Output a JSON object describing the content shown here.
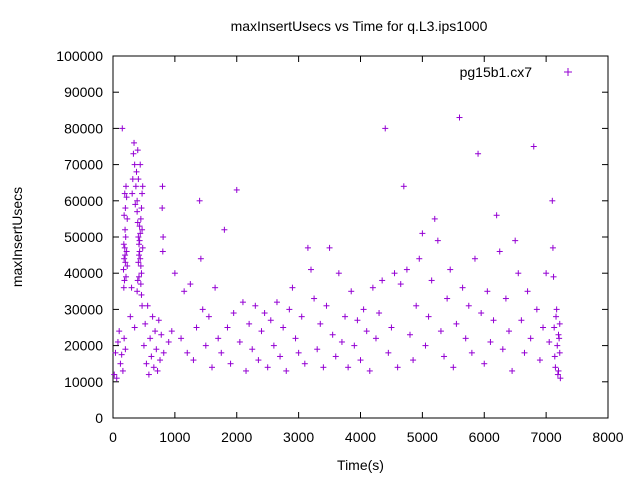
{
  "chart_data": {
    "type": "scatter",
    "title": "maxInsertUsecs vs Time for q.L3.ips1000",
    "xlabel": "Time(s)",
    "ylabel": "maxInsertUsecs",
    "xlim": [
      0,
      8000
    ],
    "ylim": [
      0,
      100000
    ],
    "xticks": [
      0,
      1000,
      2000,
      3000,
      4000,
      5000,
      6000,
      7000,
      8000
    ],
    "yticks": [
      0,
      10000,
      20000,
      30000,
      40000,
      50000,
      60000,
      70000,
      80000,
      90000,
      100000
    ],
    "grid": false,
    "legend": "top-right",
    "marker": "plus",
    "series": [
      {
        "name": "pg15b1.cx7",
        "color": "#9400d3",
        "points": [
          [
            20,
            12000
          ],
          [
            40,
            18000
          ],
          [
            60,
            11000
          ],
          [
            80,
            21000
          ],
          [
            100,
            24000
          ],
          [
            120,
            15000
          ],
          [
            140,
            17500
          ],
          [
            160,
            13000
          ],
          [
            180,
            22000
          ],
          [
            200,
            19000
          ],
          [
            170,
            41000
          ],
          [
            180,
            44000
          ],
          [
            190,
            47000
          ],
          [
            200,
            43000
          ],
          [
            210,
            39000
          ],
          [
            220,
            46000
          ],
          [
            230,
            42000
          ],
          [
            175,
            48000
          ],
          [
            185,
            38000
          ],
          [
            195,
            45000
          ],
          [
            180,
            56000
          ],
          [
            190,
            62000
          ],
          [
            200,
            58000
          ],
          [
            210,
            64000
          ],
          [
            220,
            61000
          ],
          [
            230,
            55000
          ],
          [
            175,
            36000
          ],
          [
            195,
            52000
          ],
          [
            205,
            50000
          ],
          [
            150,
            80000
          ],
          [
            280,
            28000
          ],
          [
            300,
            36000
          ],
          [
            310,
            62000
          ],
          [
            320,
            66000
          ],
          [
            330,
            73000
          ],
          [
            340,
            76000
          ],
          [
            350,
            70000
          ],
          [
            360,
            59000
          ],
          [
            370,
            64000
          ],
          [
            380,
            68000
          ],
          [
            390,
            57000
          ],
          [
            400,
            54000
          ],
          [
            410,
            50000
          ],
          [
            420,
            48000
          ],
          [
            430,
            46000
          ],
          [
            440,
            44000
          ],
          [
            450,
            42000
          ],
          [
            460,
            40000
          ],
          [
            470,
            52000
          ],
          [
            480,
            47000
          ],
          [
            390,
            35000
          ],
          [
            400,
            38000
          ],
          [
            410,
            43000
          ],
          [
            420,
            45000
          ],
          [
            430,
            49000
          ],
          [
            440,
            51000
          ],
          [
            450,
            55000
          ],
          [
            460,
            58000
          ],
          [
            470,
            62000
          ],
          [
            480,
            64000
          ],
          [
            400,
            74000
          ],
          [
            410,
            66000
          ],
          [
            440,
            70000
          ],
          [
            390,
            60000
          ],
          [
            430,
            53000
          ],
          [
            350,
            25000
          ],
          [
            420,
            39000
          ],
          [
            450,
            37000
          ],
          [
            460,
            34000
          ],
          [
            470,
            31000
          ],
          [
            500,
            20000
          ],
          [
            520,
            26000
          ],
          [
            540,
            15000
          ],
          [
            560,
            31000
          ],
          [
            580,
            12000
          ],
          [
            600,
            22000
          ],
          [
            620,
            17000
          ],
          [
            640,
            28000
          ],
          [
            660,
            14000
          ],
          [
            680,
            24000
          ],
          [
            700,
            19000
          ],
          [
            720,
            13000
          ],
          [
            740,
            27000
          ],
          [
            760,
            16000
          ],
          [
            780,
            23000
          ],
          [
            795,
            58000
          ],
          [
            800,
            64000
          ],
          [
            805,
            46000
          ],
          [
            810,
            50000
          ],
          [
            820,
            18000
          ],
          [
            900,
            21000
          ],
          [
            950,
            24000
          ],
          [
            1000,
            40000
          ],
          [
            1100,
            22000
          ],
          [
            1150,
            35000
          ],
          [
            1200,
            18000
          ],
          [
            1250,
            37000
          ],
          [
            1300,
            16000
          ],
          [
            1350,
            25000
          ],
          [
            1400,
            60000
          ],
          [
            1420,
            44000
          ],
          [
            1450,
            30000
          ],
          [
            1500,
            20000
          ],
          [
            1550,
            28000
          ],
          [
            1600,
            14000
          ],
          [
            1650,
            36000
          ],
          [
            1700,
            22000
          ],
          [
            1750,
            18000
          ],
          [
            1800,
            52000
          ],
          [
            1850,
            25000
          ],
          [
            1900,
            15000
          ],
          [
            1950,
            29000
          ],
          [
            2000,
            63000
          ],
          [
            2050,
            21000
          ],
          [
            2100,
            32000
          ],
          [
            2150,
            13000
          ],
          [
            2200,
            26000
          ],
          [
            2250,
            19000
          ],
          [
            2300,
            31000
          ],
          [
            2350,
            16000
          ],
          [
            2400,
            24000
          ],
          [
            2450,
            29000
          ],
          [
            2500,
            14000
          ],
          [
            2550,
            27000
          ],
          [
            2600,
            20000
          ],
          [
            2650,
            32000
          ],
          [
            2700,
            17000
          ],
          [
            2750,
            25000
          ],
          [
            2800,
            13000
          ],
          [
            2850,
            30000
          ],
          [
            2900,
            36000
          ],
          [
            2950,
            22000
          ],
          [
            3000,
            18000
          ],
          [
            3050,
            28000
          ],
          [
            3100,
            15000
          ],
          [
            3150,
            47000
          ],
          [
            3200,
            41000
          ],
          [
            3250,
            33000
          ],
          [
            3300,
            19000
          ],
          [
            3350,
            26000
          ],
          [
            3400,
            14000
          ],
          [
            3450,
            31000
          ],
          [
            3500,
            47000
          ],
          [
            3550,
            23000
          ],
          [
            3600,
            17000
          ],
          [
            3650,
            40000
          ],
          [
            3700,
            21000
          ],
          [
            3750,
            28000
          ],
          [
            3800,
            14000
          ],
          [
            3850,
            35000
          ],
          [
            3900,
            20000
          ],
          [
            3950,
            27000
          ],
          [
            4000,
            16000
          ],
          [
            4050,
            30000
          ],
          [
            4100,
            24000
          ],
          [
            4150,
            13000
          ],
          [
            4200,
            36000
          ],
          [
            4250,
            22000
          ],
          [
            4300,
            29000
          ],
          [
            4350,
            38000
          ],
          [
            4400,
            80000
          ],
          [
            4450,
            18000
          ],
          [
            4500,
            25000
          ],
          [
            4550,
            40000
          ],
          [
            4600,
            14000
          ],
          [
            4650,
            37000
          ],
          [
            4700,
            64000
          ],
          [
            4750,
            41000
          ],
          [
            4800,
            23000
          ],
          [
            4850,
            16000
          ],
          [
            4900,
            31000
          ],
          [
            4950,
            44000
          ],
          [
            5000,
            51000
          ],
          [
            5050,
            20000
          ],
          [
            5100,
            28000
          ],
          [
            5150,
            38000
          ],
          [
            5200,
            55000
          ],
          [
            5250,
            49000
          ],
          [
            5300,
            24000
          ],
          [
            5350,
            17000
          ],
          [
            5400,
            33000
          ],
          [
            5450,
            41000
          ],
          [
            5500,
            14000
          ],
          [
            5550,
            26000
          ],
          [
            5600,
            83000
          ],
          [
            5650,
            36000
          ],
          [
            5700,
            22000
          ],
          [
            5750,
            31000
          ],
          [
            5800,
            18000
          ],
          [
            5850,
            44000
          ],
          [
            5900,
            73000
          ],
          [
            5950,
            29000
          ],
          [
            6000,
            15000
          ],
          [
            6050,
            35000
          ],
          [
            6100,
            21000
          ],
          [
            6150,
            27000
          ],
          [
            6200,
            56000
          ],
          [
            6250,
            46000
          ],
          [
            6300,
            19000
          ],
          [
            6350,
            33000
          ],
          [
            6400,
            24000
          ],
          [
            6450,
            13000
          ],
          [
            6500,
            49000
          ],
          [
            6550,
            40000
          ],
          [
            6600,
            27000
          ],
          [
            6650,
            18000
          ],
          [
            6700,
            35000
          ],
          [
            6750,
            22000
          ],
          [
            6800,
            75000
          ],
          [
            6850,
            30000
          ],
          [
            6900,
            16000
          ],
          [
            6950,
            25000
          ],
          [
            7000,
            40000
          ],
          [
            7050,
            21000
          ],
          [
            7100,
            60000
          ],
          [
            7110,
            47000
          ],
          [
            7120,
            39000
          ],
          [
            7150,
            14000
          ],
          [
            7200,
            23000
          ],
          [
            7220,
            18000
          ],
          [
            7230,
            11000
          ],
          [
            7180,
            20000
          ],
          [
            7160,
            28000
          ],
          [
            7190,
            12000
          ],
          [
            7210,
            22000
          ],
          [
            7170,
            30000
          ],
          [
            7140,
            17000
          ],
          [
            7130,
            25000
          ],
          [
            7200,
            13000
          ],
          [
            7220,
            26000
          ]
        ]
      }
    ]
  }
}
